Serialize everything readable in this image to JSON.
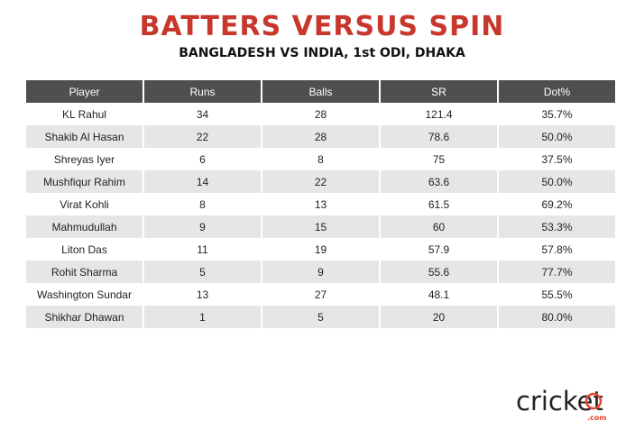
{
  "header": {
    "title": "BATTERS VERSUS SPIN",
    "subtitle": "BANGLADESH VS INDIA, 1st ODI, DHAKA"
  },
  "chart_data": {
    "type": "table",
    "title": "BATTERS VERSUS SPIN",
    "subtitle": "BANGLADESH VS INDIA, 1st ODI, DHAKA",
    "columns": [
      "Player",
      "Runs",
      "Balls",
      "SR",
      "Dot%"
    ],
    "rows": [
      [
        "KL Rahul",
        "34",
        "28",
        "121.4",
        "35.7%"
      ],
      [
        "Shakib Al Hasan",
        "22",
        "28",
        "78.6",
        "50.0%"
      ],
      [
        "Shreyas Iyer",
        "6",
        "8",
        "75",
        "37.5%"
      ],
      [
        "Mushfiqur Rahim",
        "14",
        "22",
        "63.6",
        "50.0%"
      ],
      [
        "Virat Kohli",
        "8",
        "13",
        "61.5",
        "69.2%"
      ],
      [
        "Mahmudullah",
        "9",
        "15",
        "60",
        "53.3%"
      ],
      [
        "Liton Das",
        "11",
        "19",
        "57.9",
        "57.8%"
      ],
      [
        "Rohit Sharma",
        "5",
        "9",
        "55.6",
        "77.7%"
      ],
      [
        "Washington Sundar",
        "13",
        "27",
        "48.1",
        "55.5%"
      ],
      [
        "Shikhar Dhawan",
        "1",
        "5",
        "20",
        "80.0%"
      ]
    ]
  },
  "logo": {
    "brand_text": "cricket",
    "domain_text": ".com",
    "accent_color": "#e8452c",
    "text_color": "#222222"
  },
  "colors": {
    "title": "#c8372b",
    "header_bg": "#4f4f4f",
    "row_alt_bg": "#e6e6e6"
  }
}
